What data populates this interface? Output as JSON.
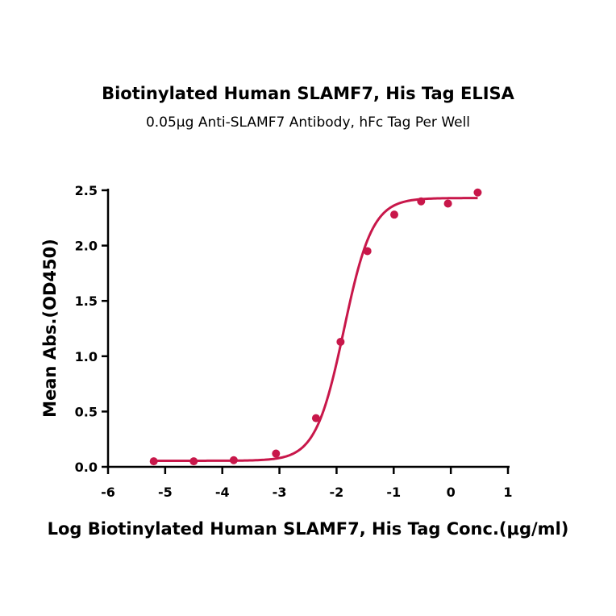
{
  "chart_data": {
    "type": "scatter",
    "title": "Biotinylated Human SLAMF7, His Tag  ELISA",
    "subtitle": "0.05μg Anti-SLAMF7 Antibody, hFc Tag Per Well",
    "xlabel": "Log Biotinylated Human SLAMF7, His Tag Conc.(μg/ml)",
    "ylabel": "Mean Abs.(OD450)",
    "xlim": [
      -6,
      1
    ],
    "ylim": [
      0,
      2.5
    ],
    "x_ticks": [
      "-6",
      "-5",
      "-4",
      "-3",
      "-2",
      "-1",
      "0",
      "1"
    ],
    "y_ticks": [
      "0.0",
      "0.5",
      "1.0",
      "1.5",
      "2.0",
      "2.5"
    ],
    "grid": false,
    "series": [
      {
        "color": "#c8174a",
        "points": [
          {
            "x": -5.2,
            "y": 0.05
          },
          {
            "x": -4.5,
            "y": 0.05
          },
          {
            "x": -3.8,
            "y": 0.06
          },
          {
            "x": -3.06,
            "y": 0.12
          },
          {
            "x": -2.36,
            "y": 0.44
          },
          {
            "x": -1.93,
            "y": 1.13
          },
          {
            "x": -1.46,
            "y": 1.95
          },
          {
            "x": -0.99,
            "y": 2.28
          },
          {
            "x": -0.52,
            "y": 2.4
          },
          {
            "x": -0.05,
            "y": 2.38
          },
          {
            "x": 0.47,
            "y": 2.48
          }
        ],
        "fit": {
          "model": "4PL",
          "bottom": 0.055,
          "top": 2.43,
          "log_ec50": -1.87,
          "hill_slope": 1.75
        }
      }
    ]
  }
}
